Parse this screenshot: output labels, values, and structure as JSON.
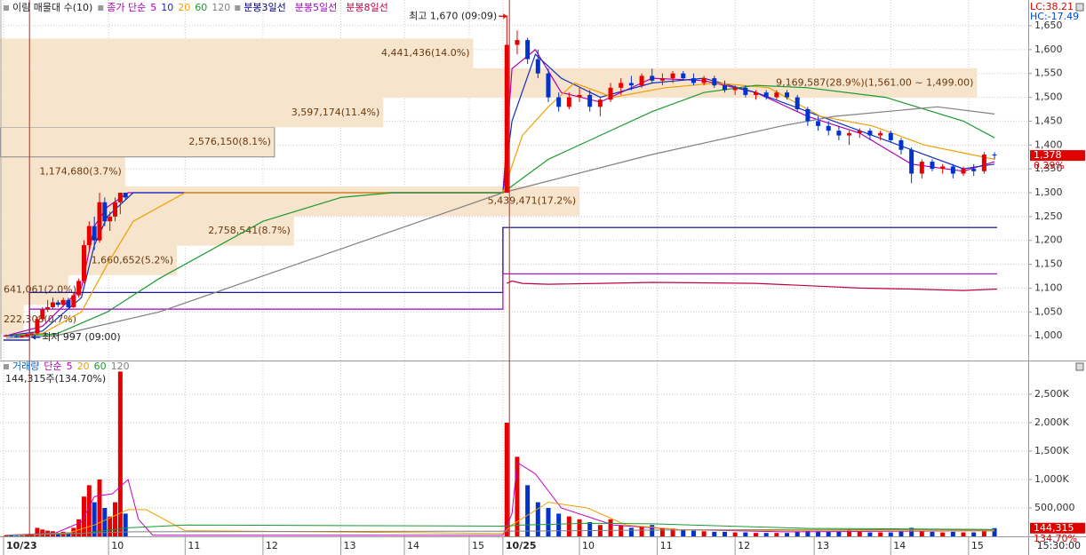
{
  "chart_data": [
    {
      "type": "candlestick",
      "legend_title": "이림 매물대 수(10)",
      "ma_title": "종가 단순",
      "corner_labels": [
        {
          "text": "LC:38.21",
          "color": "#e00000"
        },
        {
          "text": "HC:-17.49",
          "color": "#0044cc"
        }
      ],
      "xlim": [
        0,
        790
      ],
      "ylim": [
        950,
        1704
      ],
      "yticks": [
        {
          "value": 1000,
          "label": "1,000"
        },
        {
          "value": 1050,
          "label": "1,050"
        },
        {
          "value": 1100,
          "label": "1,100"
        },
        {
          "value": 1150,
          "label": "1,150"
        },
        {
          "value": 1200,
          "label": "1,200"
        },
        {
          "value": 1250,
          "label": "1,250"
        },
        {
          "value": 1300,
          "label": "1,300"
        },
        {
          "value": 1350,
          "label": "1,350"
        },
        {
          "value": 1400,
          "label": "1,400"
        },
        {
          "value": 1450,
          "label": "1,450"
        },
        {
          "value": 1500,
          "label": "1,500"
        },
        {
          "value": 1550,
          "label": "1,550"
        },
        {
          "value": 1600,
          "label": "1,600"
        },
        {
          "value": 1650,
          "label": "1,650"
        }
      ],
      "grid": true,
      "up_color": "#e60000",
      "down_color": "#0033cc",
      "profile": {
        "color": "#f7e4cc",
        "label_color": "#6a3a10",
        "xlim": [
          0,
          9650000
        ],
        "labels": [
          "222,308(0.7%)",
          "641,061(2.0%)",
          "1,660,652(5.2%)",
          "2,758,541(8.7%)",
          "5,439,471(17.2%)",
          "1,174,680(3.7%)",
          "2,576,150(8.1%)",
          "3,597,174(11.4%)",
          "9,169,587(28.9%)(1,561.00 ~ 1,499.00)",
          "4,441,436(14.0%)"
        ],
        "values": [
          222308,
          641061,
          1660652,
          2758541,
          5439471,
          1174680,
          2576150,
          3597174,
          9169587,
          4441436
        ],
        "lows": [
          1003,
          1065,
          1127,
          1189,
          1251,
          1313,
          1375,
          1437,
          1499,
          1561
        ],
        "highs": [
          1065,
          1127,
          1189,
          1251,
          1313,
          1375,
          1437,
          1499,
          1561,
          1623
        ]
      },
      "candles": {
        "x": [
          2,
          6,
          10,
          14,
          18,
          22,
          26,
          30,
          34,
          38,
          42,
          46,
          50,
          54,
          58,
          62,
          66,
          70,
          74,
          78,
          82,
          86,
          90,
          94,
          388,
          396,
          404,
          412,
          420,
          428,
          436,
          444,
          452,
          460,
          468,
          476,
          484,
          492,
          500,
          508,
          516,
          524,
          532,
          540,
          548,
          556,
          564,
          572,
          580,
          588,
          596,
          604,
          612,
          620,
          628,
          636,
          644,
          652,
          660,
          668,
          676,
          684,
          692,
          700,
          708,
          716,
          724,
          732,
          740,
          748,
          756,
          764
        ],
        "open": [
          1000,
          1000,
          999,
          998,
          999,
          1003,
          1005,
          1035,
          1055,
          1060,
          1070,
          1065,
          1075,
          1060,
          1085,
          1115,
          1190,
          1230,
          1200,
          1280,
          1240,
          1250,
          1280,
          1300,
          1300,
          1610,
          1620,
          1580,
          1550,
          1500,
          1480,
          1500,
          1505,
          1480,
          1495,
          1520,
          1530,
          1525,
          1545,
          1535,
          1540,
          1550,
          1540,
          1530,
          1540,
          1525,
          1515,
          1520,
          1505,
          1510,
          1500,
          1510,
          1500,
          1475,
          1450,
          1440,
          1430,
          1420,
          1425,
          1430,
          1420,
          1425,
          1410,
          1390,
          1340,
          1365,
          1350,
          1355,
          1340,
          1350,
          1345,
          1380
        ],
        "high": [
          1003,
          1002,
          1001,
          1000,
          1005,
          1008,
          1040,
          1060,
          1075,
          1080,
          1075,
          1080,
          1080,
          1090,
          1120,
          1200,
          1240,
          1250,
          1300,
          1290,
          1260,
          1290,
          1300,
          1300,
          1670,
          1640,
          1625,
          1600,
          1560,
          1510,
          1510,
          1520,
          1515,
          1500,
          1530,
          1540,
          1545,
          1550,
          1560,
          1550,
          1555,
          1555,
          1550,
          1545,
          1545,
          1535,
          1525,
          1525,
          1515,
          1515,
          1515,
          1515,
          1505,
          1480,
          1460,
          1450,
          1440,
          1430,
          1435,
          1435,
          1430,
          1430,
          1415,
          1395,
          1370,
          1370,
          1360,
          1360,
          1355,
          1360,
          1385,
          1385
        ],
        "low": [
          998,
          998,
          998,
          996,
          998,
          997,
          1003,
          1030,
          1050,
          1055,
          1060,
          1060,
          1055,
          1058,
          1080,
          1110,
          1180,
          1180,
          1195,
          1230,
          1220,
          1240,
          1255,
          1285,
          1300,
          1590,
          1570,
          1540,
          1490,
          1470,
          1475,
          1490,
          1470,
          1460,
          1490,
          1505,
          1515,
          1520,
          1530,
          1525,
          1530,
          1535,
          1525,
          1525,
          1520,
          1510,
          1505,
          1500,
          1495,
          1495,
          1495,
          1495,
          1470,
          1440,
          1430,
          1420,
          1410,
          1400,
          1415,
          1410,
          1410,
          1405,
          1380,
          1320,
          1330,
          1345,
          1340,
          1330,
          1335,
          1335,
          1340,
          1370
        ],
        "close": [
          1000,
          999,
          998,
          999,
          1003,
          1005,
          1035,
          1055,
          1060,
          1070,
          1065,
          1075,
          1060,
          1085,
          1115,
          1190,
          1230,
          1200,
          1280,
          1240,
          1250,
          1280,
          1300,
          1290,
          1610,
          1620,
          1580,
          1550,
          1500,
          1480,
          1500,
          1505,
          1480,
          1495,
          1520,
          1530,
          1525,
          1545,
          1535,
          1540,
          1550,
          1540,
          1530,
          1540,
          1525,
          1515,
          1520,
          1505,
          1510,
          1500,
          1510,
          1500,
          1475,
          1450,
          1440,
          1430,
          1420,
          1425,
          1430,
          1420,
          1425,
          1410,
          1390,
          1340,
          1365,
          1350,
          1355,
          1340,
          1350,
          1345,
          1380,
          1378
        ]
      },
      "ma_series": [
        {
          "name": "5",
          "color": "#b000b0",
          "x": [
            2,
            30,
            60,
            70,
            80,
            96,
            385,
            392,
            410,
            430,
            460,
            500,
            540,
            580,
            620,
            660,
            700,
            740,
            764
          ],
          "values": [
            1000,
            1020,
            1100,
            1230,
            1270,
            1300,
            1300,
            1560,
            1600,
            1510,
            1490,
            1540,
            1535,
            1510,
            1460,
            1425,
            1360,
            1345,
            1365
          ]
        },
        {
          "name": "10",
          "color": "#1030c0",
          "x": [
            2,
            30,
            60,
            70,
            80,
            100,
            385,
            392,
            410,
            430,
            460,
            500,
            540,
            580,
            620,
            660,
            700,
            740,
            764
          ],
          "values": [
            1000,
            1010,
            1080,
            1190,
            1250,
            1300,
            1300,
            1450,
            1590,
            1540,
            1500,
            1530,
            1540,
            1510,
            1470,
            1430,
            1390,
            1350,
            1360
          ]
        },
        {
          "name": "20",
          "color": "#f0a000",
          "x": [
            2,
            30,
            60,
            80,
            100,
            140,
            385,
            400,
            420,
            440,
            470,
            510,
            550,
            590,
            630,
            670,
            710,
            764
          ],
          "values": [
            1000,
            1005,
            1050,
            1150,
            1240,
            1300,
            1300,
            1420,
            1480,
            1530,
            1500,
            1520,
            1530,
            1520,
            1460,
            1440,
            1400,
            1370
          ]
        },
        {
          "name": "60",
          "color": "#1a9a30",
          "x": [
            2,
            40,
            80,
            120,
            200,
            260,
            300,
            385,
            420,
            460,
            500,
            540,
            580,
            620,
            680,
            740,
            764
          ],
          "values": [
            1000,
            1003,
            1050,
            1120,
            1240,
            1290,
            1300,
            1300,
            1370,
            1420,
            1470,
            1510,
            1525,
            1520,
            1500,
            1450,
            1415
          ]
        },
        {
          "name": "120",
          "color": "#808080",
          "x": [
            2,
            40,
            120,
            385,
            500,
            600,
            640,
            720,
            764
          ],
          "values": [
            995,
            1000,
            1050,
            1300,
            1380,
            1440,
            1460,
            1480,
            1465
          ]
        }
      ],
      "line_series": [
        {
          "name": "분봉3일선",
          "color": "#000080",
          "x": [
            0,
            20,
            20,
            385,
            385,
            766
          ],
          "values": [
            991,
            991,
            1091,
            1091,
            1227,
            1227
          ]
        },
        {
          "name": "분봉5일선",
          "color": "#a000c0",
          "x": [
            0,
            20,
            20,
            385,
            385,
            766
          ],
          "values": [
            1000,
            1000,
            1056,
            1056,
            1130,
            1130
          ]
        },
        {
          "name": "분봉8일선",
          "color": "#c00040",
          "x": [
            388,
            392,
            400,
            420,
            460,
            500,
            540,
            580,
            620,
            660,
            700,
            740,
            766
          ],
          "values": [
            1110,
            1115,
            1110,
            1108,
            1110,
            1112,
            1111,
            1110,
            1105,
            1100,
            1098,
            1095,
            1098
          ]
        }
      ],
      "high_marker": {
        "text": "최고 1,670 (09:09)",
        "x": 390,
        "value": 1670
      },
      "low_marker": {
        "text": "최저 997 (09:00)",
        "x": 20,
        "value": 997
      },
      "last_price": {
        "value": 1378,
        "label": "1,378"
      },
      "last_change": "0.29%"
    },
    {
      "type": "bar",
      "title": "거래량",
      "ma_title": "단순",
      "subtitle": "144,315주(134.70%)",
      "xlim": [
        0,
        790
      ],
      "ylim": [
        0,
        3062500
      ],
      "yticks": [
        {
          "value": 500000,
          "label": "500,000"
        },
        {
          "value": 1000000,
          "label": "1,000K"
        },
        {
          "value": 1500000,
          "label": "1,500K"
        },
        {
          "value": 2000000,
          "label": "2,000K"
        },
        {
          "value": 2500000,
          "label": "2,500K"
        }
      ],
      "xticks": [
        {
          "value": 0,
          "label": "10/23"
        },
        {
          "value": 81,
          "label": "10"
        },
        {
          "value": 140,
          "label": "11"
        },
        {
          "value": 200,
          "label": "12"
        },
        {
          "value": 260,
          "label": "13"
        },
        {
          "value": 309,
          "label": "14"
        },
        {
          "value": 359,
          "label": "15"
        },
        {
          "value": 385,
          "label": "10/25"
        },
        {
          "value": 444,
          "label": "10"
        },
        {
          "value": 504,
          "label": "11"
        },
        {
          "value": 564,
          "label": "12"
        },
        {
          "value": 625,
          "label": "13"
        },
        {
          "value": 684,
          "label": "14"
        },
        {
          "value": 744,
          "label": "15"
        }
      ],
      "x_end_label": "15:30:00",
      "grid": true,
      "values": [
        20000,
        15000,
        10000,
        12000,
        25000,
        40000,
        150000,
        120000,
        100000,
        90000,
        60000,
        80000,
        70000,
        150000,
        300000,
        700000,
        900000,
        600000,
        1000000,
        500000,
        350000,
        600000,
        2900000,
        400000,
        2000000,
        1400000,
        900000,
        600000,
        500000,
        400000,
        350000,
        300000,
        250000,
        200000,
        300000,
        200000,
        150000,
        180000,
        200000,
        150000,
        140000,
        120000,
        100000,
        90000,
        80000,
        80000,
        70000,
        70000,
        60000,
        60000,
        60000,
        60000,
        80000,
        100000,
        90000,
        80000,
        80000,
        120000,
        80000,
        70000,
        70000,
        70000,
        90000,
        150000,
        100000,
        80000,
        70000,
        80000,
        70000,
        70000,
        120000,
        144315
      ],
      "ma_series": [
        {
          "name": "5",
          "color": "#c000c0",
          "x": [
            2,
            40,
            60,
            70,
            84,
            96,
            104,
            115,
            385,
            392,
            396,
            410,
            430,
            470,
            520,
            600,
            700,
            764
          ],
          "values": [
            20000,
            60000,
            250000,
            700000,
            750000,
            1000000,
            300000,
            20000,
            20000,
            400000,
            1300000,
            1100000,
            500000,
            200000,
            120000,
            80000,
            90000,
            100000
          ]
        },
        {
          "name": "20",
          "color": "#f0a000",
          "x": [
            2,
            50,
            70,
            96,
            110,
            140,
            385,
            392,
            420,
            450,
            480,
            520,
            600,
            764
          ],
          "values": [
            20000,
            60000,
            200000,
            470000,
            470000,
            100000,
            50000,
            200000,
            600000,
            500000,
            200000,
            120000,
            100000,
            95000
          ]
        },
        {
          "name": "60",
          "color": "#1a9a30",
          "x": [
            2,
            60,
            96,
            140,
            385,
            400,
            450,
            500,
            560,
            620,
            764
          ],
          "values": [
            20000,
            50000,
            150000,
            200000,
            180000,
            200000,
            230000,
            220000,
            180000,
            140000,
            120000
          ]
        },
        {
          "name": "120",
          "color": "#808080",
          "x": [
            2,
            100,
            385,
            500,
            620,
            764
          ],
          "values": [
            20000,
            80000,
            90000,
            110000,
            120000,
            110000
          ]
        }
      ],
      "last_volume": {
        "value": 144315,
        "label": "144,315"
      },
      "last_ratio": "134.70%"
    }
  ]
}
